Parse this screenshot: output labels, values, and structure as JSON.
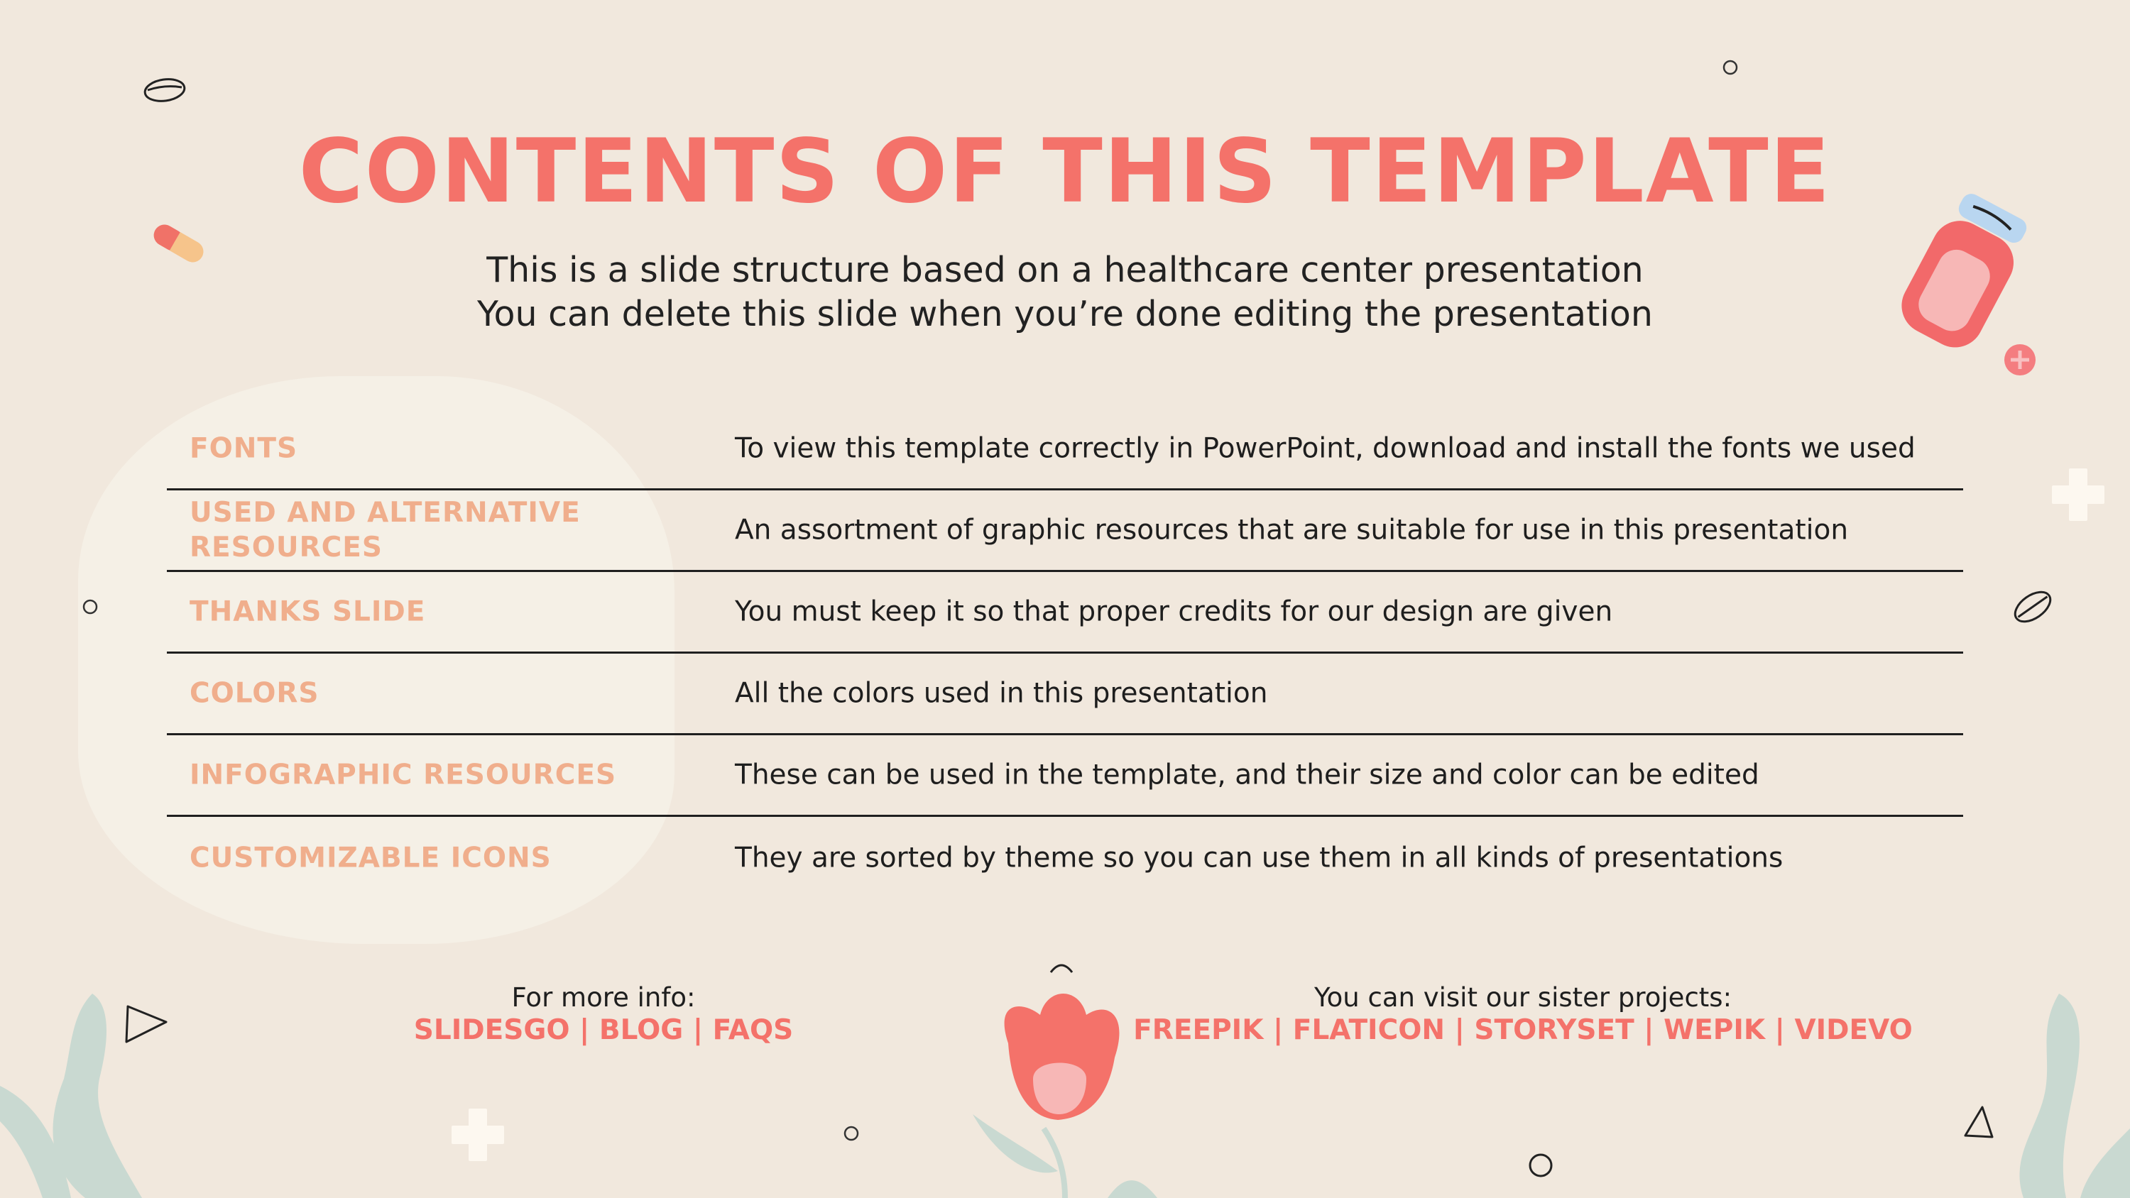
{
  "title": "CONTENTS OF THIS TEMPLATE",
  "subtitle": [
    "This is a slide structure based on a healthcare center presentation",
    "You can delete this slide when you’re done editing the presentation"
  ],
  "rows": [
    {
      "label": "FONTS",
      "desc": "To view this template correctly in PowerPoint, download and install the fonts we used"
    },
    {
      "label": "USED AND ALTERNATIVE RESOURCES",
      "desc": "An assortment of graphic resources that are suitable for use in this presentation"
    },
    {
      "label": "THANKS SLIDE",
      "desc": "You must keep it so that proper credits for our design are given"
    },
    {
      "label": "COLORS",
      "desc": "All the colors used in this presentation"
    },
    {
      "label": "INFOGRAPHIC RESOURCES",
      "desc": "These can be used in the template, and their size and color can be edited"
    },
    {
      "label": "CUSTOMIZABLE ICONS",
      "desc": "They are sorted by theme so you can use them in all kinds of presentations"
    }
  ],
  "footer": {
    "more_info_caption": "For more info:",
    "more_info_links": "SLIDESGO | BLOG | FAQS",
    "sister_caption": "You can visit our sister projects:",
    "sister_links": "FREEPIK | FLATICON | STORYSET | WEPIK | VIDEVO"
  },
  "colors": {
    "background": "#f1e8dd",
    "blob": "#f5f0e6",
    "title": "#f4726a",
    "label": "#f0ae8c",
    "text": "#1e1e1e",
    "leaf": "#c9d9d1",
    "jar_cap": "#b9d6f0"
  },
  "icons": [
    "pill-icon",
    "capsule-icon",
    "medicine-jar-icon",
    "cross-icon",
    "flower-icon",
    "leaf-icon",
    "circle-icon",
    "triangle-icon"
  ]
}
